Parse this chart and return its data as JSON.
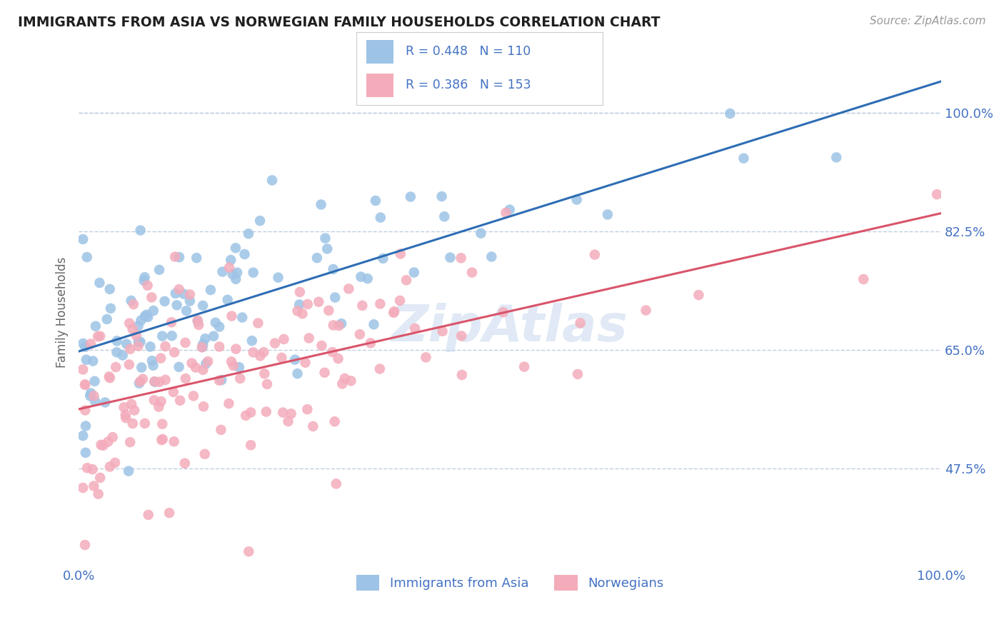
{
  "title": "IMMIGRANTS FROM ASIA VS NORWEGIAN FAMILY HOUSEHOLDS CORRELATION CHART",
  "source_text": "Source: ZipAtlas.com",
  "ylabel": "Family Households",
  "xlim": [
    0,
    100
  ],
  "ylim": [
    33,
    108
  ],
  "yticks": [
    47.5,
    65.0,
    82.5,
    100.0
  ],
  "blue_R": 0.448,
  "blue_N": 110,
  "pink_R": 0.386,
  "pink_N": 153,
  "blue_color": "#9DC3E6",
  "pink_color": "#F4ACBB",
  "blue_line_color": "#2E6DB4",
  "pink_line_color": "#D9546A",
  "legend_label_blue": "Immigrants from Asia",
  "legend_label_pink": "Norwegians",
  "title_color": "#1F1F1F",
  "axis_label_color": "#4472C4",
  "watermark": "ZipAtlas",
  "grid_color": "#C0CDE0",
  "blue_seed": 10,
  "pink_seed": 20
}
